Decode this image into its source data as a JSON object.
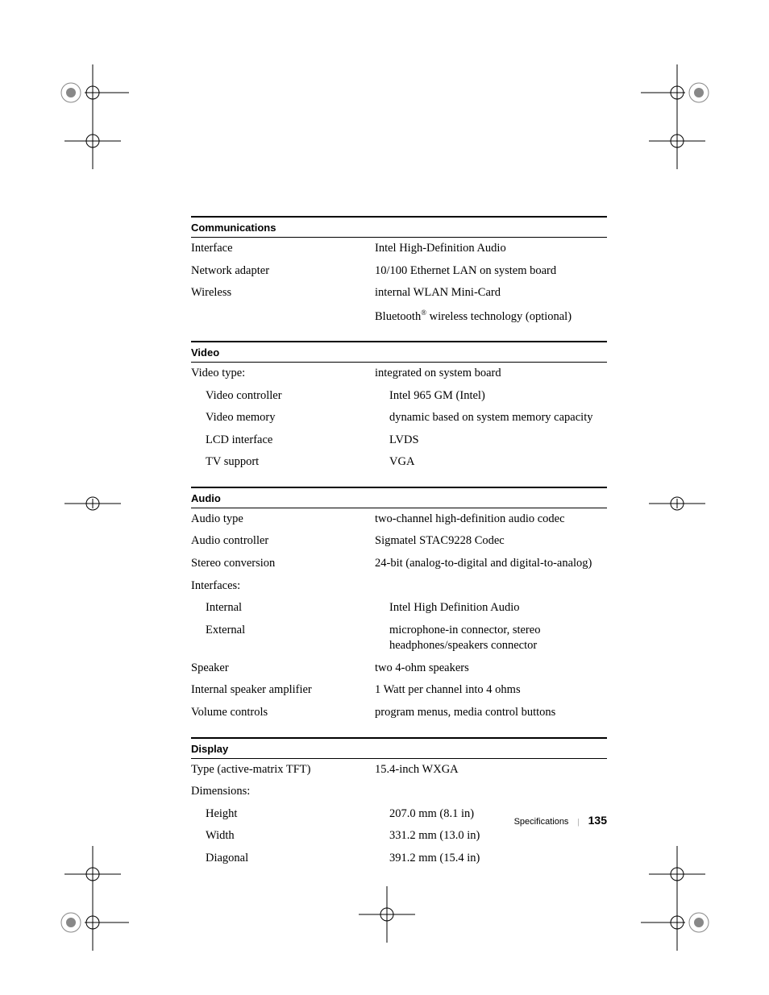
{
  "sections": [
    {
      "title": "Communications",
      "rows": [
        {
          "label": "Interface",
          "value": "Intel High-Definition Audio"
        },
        {
          "label": "Network adapter",
          "value": "10/100 Ethernet LAN on system board"
        },
        {
          "label": "Wireless",
          "value": "internal WLAN Mini-Card"
        },
        {
          "label": "",
          "value_html": "Bluetooth<span class=\"sup\">®</span> wireless technology (optional)"
        }
      ]
    },
    {
      "title": "Video",
      "rows": [
        {
          "label": "Video type:",
          "value": "integrated on system board"
        },
        {
          "label": "Video controller",
          "value": "Intel 965 GM (Intel)",
          "indent": true
        },
        {
          "label": "Video memory",
          "value": "dynamic based on system memory capacity",
          "indent": true
        },
        {
          "label": "LCD interface",
          "value": "LVDS",
          "indent": true
        },
        {
          "label": "TV support",
          "value": "VGA",
          "indent": true
        }
      ]
    },
    {
      "title": "Audio",
      "rows": [
        {
          "label": "Audio type",
          "value": "two-channel high-definition audio codec"
        },
        {
          "label": "Audio controller",
          "value": "Sigmatel STAC9228 Codec"
        },
        {
          "label": "Stereo conversion",
          "value": "24-bit (analog-to-digital and digital-to-analog)"
        },
        {
          "label": "Interfaces:",
          "value": ""
        },
        {
          "label": "Internal",
          "value": "Intel High Definition Audio",
          "indent": true
        },
        {
          "label": "External",
          "value": "microphone-in connector, stereo headphones/speakers connector",
          "indent": true
        },
        {
          "label": "Speaker",
          "value": "two 4-ohm speakers"
        },
        {
          "label": "Internal speaker amplifier",
          "value": "1 Watt per channel into 4 ohms"
        },
        {
          "label": "Volume controls",
          "value": "program menus, media control buttons"
        }
      ]
    },
    {
      "title": "Display",
      "rows": [
        {
          "label": "Type (active-matrix TFT)",
          "value": "15.4-inch WXGA"
        },
        {
          "label": "Dimensions:",
          "value": ""
        },
        {
          "label": "Height",
          "value": "207.0 mm (8.1 in)",
          "indent": true
        },
        {
          "label": "Width",
          "value": "331.2 mm (13.0 in)",
          "indent": true
        },
        {
          "label": "Diagonal",
          "value": "391.2 mm (15.4 in)",
          "indent": true
        }
      ]
    }
  ],
  "footer": {
    "label": "Specifications",
    "page": "135"
  }
}
